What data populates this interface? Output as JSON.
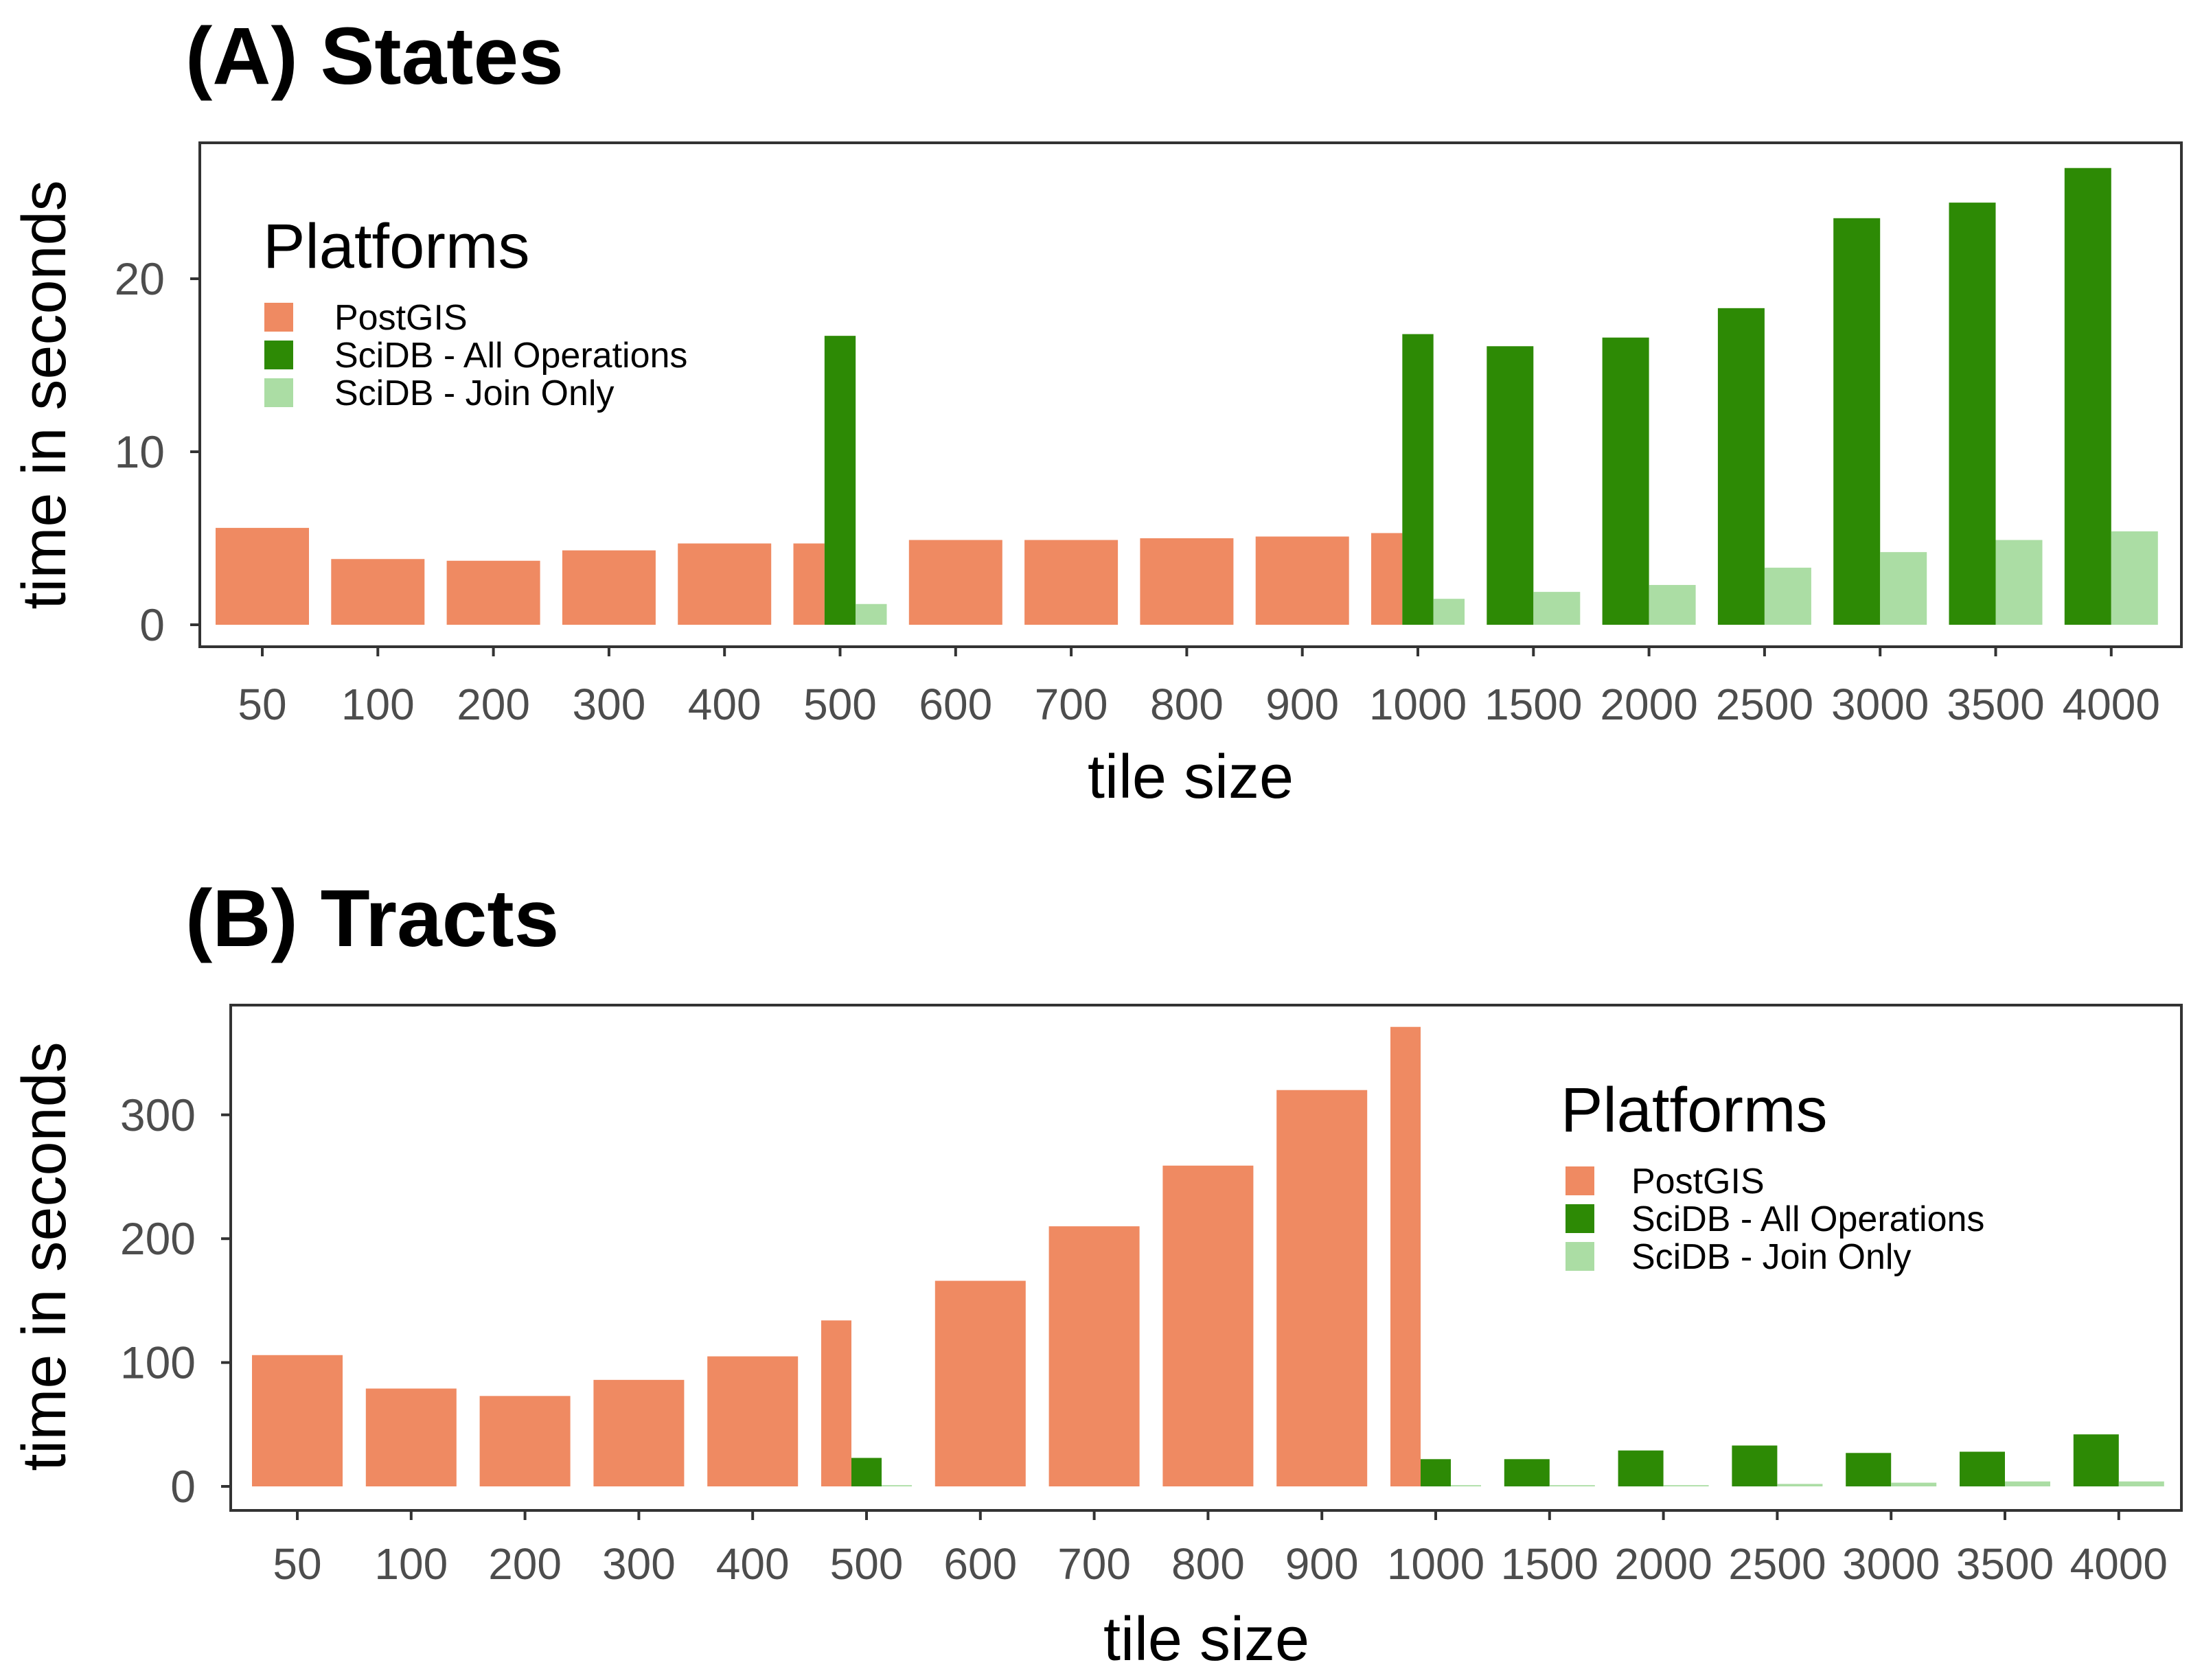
{
  "chart_data": [
    {
      "type": "bar",
      "title": "(A) States",
      "xlabel": "tile size",
      "ylabel": "time in seconds",
      "ylim": [
        0,
        27
      ],
      "yticks": [
        0,
        10,
        20
      ],
      "grid": false,
      "legend": {
        "title": "Platforms",
        "position": "top-left",
        "entries": [
          "PostGIS",
          "SciDB - All Operations",
          "SciDB - Join Only"
        ]
      },
      "categories": [
        "50",
        "100",
        "200",
        "300",
        "400",
        "500",
        "600",
        "700",
        "800",
        "900",
        "1000",
        "1500",
        "2000",
        "2500",
        "3000",
        "3500",
        "4000"
      ],
      "series": [
        {
          "name": "PostGIS",
          "color": "#ef8a62",
          "values": [
            5.6,
            3.8,
            3.7,
            4.3,
            4.7,
            4.7,
            4.9,
            4.9,
            5.0,
            5.1,
            5.3,
            null,
            null,
            null,
            null,
            null,
            null
          ]
        },
        {
          "name": "SciDB - All Operations",
          "color": "#2d8a05",
          "values": [
            null,
            null,
            null,
            null,
            null,
            16.7,
            null,
            null,
            null,
            null,
            16.8,
            16.1,
            16.6,
            18.3,
            23.5,
            24.4,
            26.4
          ]
        },
        {
          "name": "SciDB - Join Only",
          "color": "#abdda4",
          "values": [
            null,
            null,
            null,
            null,
            null,
            1.2,
            null,
            null,
            null,
            null,
            1.5,
            1.9,
            2.3,
            3.3,
            4.2,
            4.9,
            5.4
          ]
        }
      ]
    },
    {
      "type": "bar",
      "title": "(B) Tracts",
      "xlabel": "tile size",
      "ylabel": "time in seconds",
      "ylim": [
        0,
        382
      ],
      "yticks": [
        0,
        100,
        200,
        300
      ],
      "grid": false,
      "legend": {
        "title": "Platforms",
        "position": "top-right",
        "entries": [
          "PostGIS",
          "SciDB - All Operations",
          "SciDB - Join Only"
        ]
      },
      "categories": [
        "50",
        "100",
        "200",
        "300",
        "400",
        "500",
        "600",
        "700",
        "800",
        "900",
        "1000",
        "1500",
        "2000",
        "2500",
        "3000",
        "3500",
        "4000"
      ],
      "series": [
        {
          "name": "PostGIS",
          "color": "#ef8a62",
          "values": [
            106,
            79,
            73,
            86,
            105,
            134,
            166,
            210,
            259,
            320,
            371,
            null,
            null,
            null,
            null,
            null,
            null
          ]
        },
        {
          "name": "SciDB - All Operations",
          "color": "#2d8a05",
          "values": [
            null,
            null,
            null,
            null,
            null,
            23,
            null,
            null,
            null,
            null,
            22,
            22,
            29,
            33,
            27,
            28,
            42
          ]
        },
        {
          "name": "SciDB - Join Only",
          "color": "#abdda4",
          "values": [
            null,
            null,
            null,
            null,
            null,
            1,
            null,
            null,
            null,
            null,
            1,
            1,
            1,
            2,
            3,
            4,
            4
          ]
        }
      ]
    }
  ]
}
